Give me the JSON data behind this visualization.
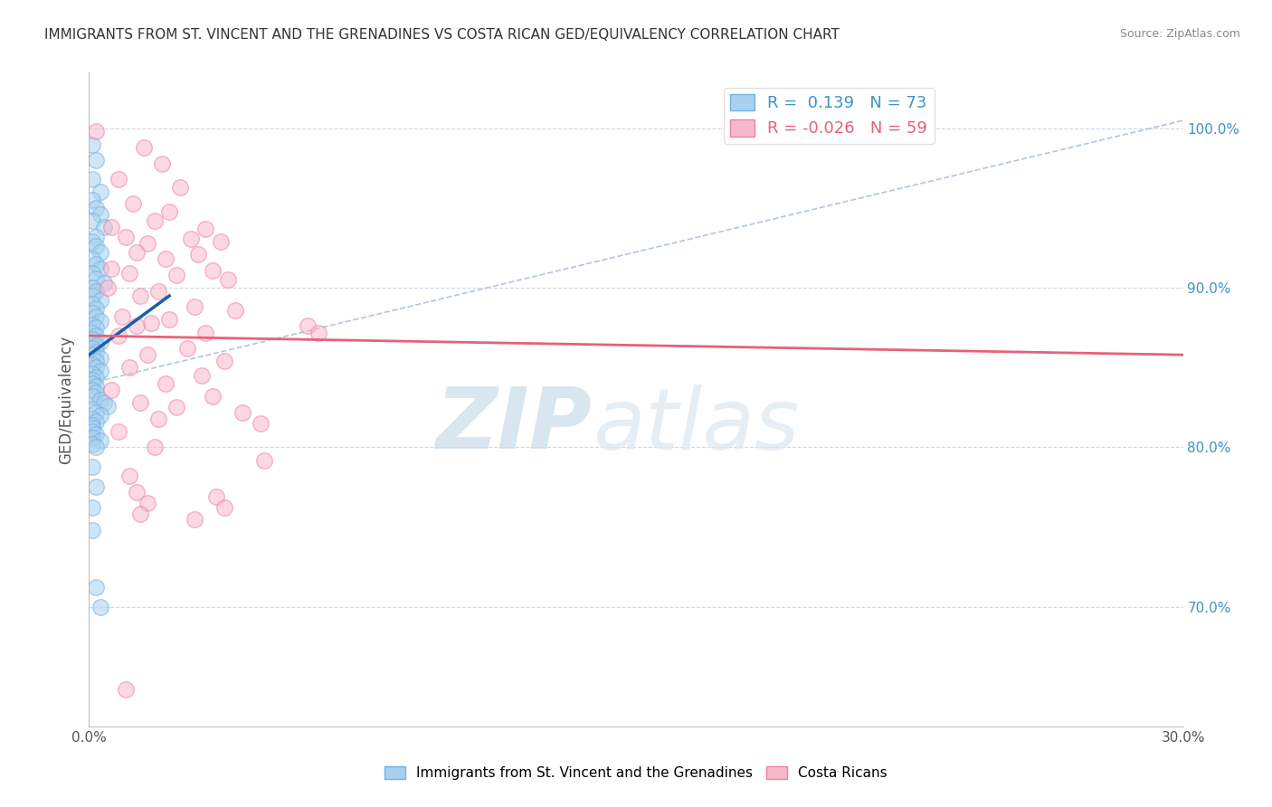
{
  "title": "IMMIGRANTS FROM ST. VINCENT AND THE GRENADINES VS COSTA RICAN GED/EQUIVALENCY CORRELATION CHART",
  "source": "Source: ZipAtlas.com",
  "ylabel": "GED/Equivalency",
  "xlim": [
    0.0,
    0.3
  ],
  "ylim": [
    0.625,
    1.035
  ],
  "blue_R": 0.139,
  "blue_N": 73,
  "pink_R": -0.026,
  "pink_N": 59,
  "blue_scatter_x": [
    0.001,
    0.002,
    0.001,
    0.003,
    0.001,
    0.002,
    0.003,
    0.001,
    0.004,
    0.002,
    0.001,
    0.002,
    0.003,
    0.001,
    0.002,
    0.003,
    0.001,
    0.002,
    0.004,
    0.001,
    0.002,
    0.001,
    0.003,
    0.001,
    0.002,
    0.001,
    0.002,
    0.003,
    0.001,
    0.002,
    0.001,
    0.002,
    0.001,
    0.003,
    0.002,
    0.001,
    0.002,
    0.001,
    0.003,
    0.002,
    0.001,
    0.002,
    0.003,
    0.001,
    0.002,
    0.001,
    0.001,
    0.002,
    0.001,
    0.002,
    0.001,
    0.003,
    0.004,
    0.005,
    0.001,
    0.002,
    0.003,
    0.001,
    0.002,
    0.001,
    0.001,
    0.001,
    0.002,
    0.001,
    0.003,
    0.001,
    0.002,
    0.001,
    0.002,
    0.001,
    0.001,
    0.002,
    0.003
  ],
  "blue_scatter_y": [
    0.99,
    0.98,
    0.968,
    0.96,
    0.955,
    0.95,
    0.946,
    0.942,
    0.938,
    0.932,
    0.929,
    0.926,
    0.922,
    0.918,
    0.915,
    0.912,
    0.909,
    0.906,
    0.903,
    0.9,
    0.898,
    0.895,
    0.892,
    0.89,
    0.887,
    0.884,
    0.882,
    0.879,
    0.877,
    0.875,
    0.872,
    0.87,
    0.868,
    0.866,
    0.864,
    0.862,
    0.86,
    0.858,
    0.856,
    0.854,
    0.852,
    0.85,
    0.848,
    0.846,
    0.844,
    0.842,
    0.84,
    0.838,
    0.836,
    0.834,
    0.832,
    0.83,
    0.828,
    0.826,
    0.824,
    0.822,
    0.82,
    0.818,
    0.816,
    0.814,
    0.812,
    0.81,
    0.808,
    0.806,
    0.804,
    0.802,
    0.8,
    0.788,
    0.775,
    0.762,
    0.748,
    0.712,
    0.7
  ],
  "pink_scatter_x": [
    0.002,
    0.015,
    0.02,
    0.008,
    0.025,
    0.012,
    0.022,
    0.018,
    0.006,
    0.032,
    0.01,
    0.028,
    0.016,
    0.036,
    0.013,
    0.03,
    0.021,
    0.006,
    0.034,
    0.011,
    0.024,
    0.038,
    0.005,
    0.019,
    0.014,
    0.029,
    0.04,
    0.009,
    0.022,
    0.017,
    0.013,
    0.032,
    0.008,
    0.027,
    0.016,
    0.037,
    0.011,
    0.031,
    0.021,
    0.006,
    0.034,
    0.014,
    0.024,
    0.042,
    0.019,
    0.047,
    0.008,
    0.018,
    0.048,
    0.011,
    0.06,
    0.063,
    0.013,
    0.035,
    0.016,
    0.037,
    0.014,
    0.029,
    0.01
  ],
  "pink_scatter_y": [
    0.998,
    0.988,
    0.978,
    0.968,
    0.963,
    0.953,
    0.948,
    0.942,
    0.938,
    0.937,
    0.932,
    0.931,
    0.928,
    0.929,
    0.922,
    0.921,
    0.918,
    0.912,
    0.911,
    0.909,
    0.908,
    0.905,
    0.9,
    0.898,
    0.895,
    0.888,
    0.886,
    0.882,
    0.88,
    0.878,
    0.876,
    0.872,
    0.87,
    0.862,
    0.858,
    0.854,
    0.85,
    0.845,
    0.84,
    0.836,
    0.832,
    0.828,
    0.825,
    0.822,
    0.818,
    0.815,
    0.81,
    0.8,
    0.792,
    0.782,
    0.876,
    0.872,
    0.772,
    0.769,
    0.765,
    0.762,
    0.758,
    0.755,
    0.648
  ],
  "blue_line_x": [
    0.0,
    0.022
  ],
  "blue_line_y": [
    0.858,
    0.895
  ],
  "pink_line_x": [
    0.0,
    0.3
  ],
  "pink_line_y": [
    0.87,
    0.858
  ],
  "dashed_line_x": [
    0.0,
    0.3
  ],
  "dashed_line_y": [
    0.84,
    1.005
  ],
  "watermark_zip": "ZIP",
  "watermark_atlas": "atlas",
  "legend_label_blue": "R =  0.139   N = 73",
  "legend_label_pink": "R = -0.026   N = 59",
  "bottom_legend_blue": "Immigrants from St. Vincent and the Grenadines",
  "bottom_legend_pink": "Costa Ricans"
}
